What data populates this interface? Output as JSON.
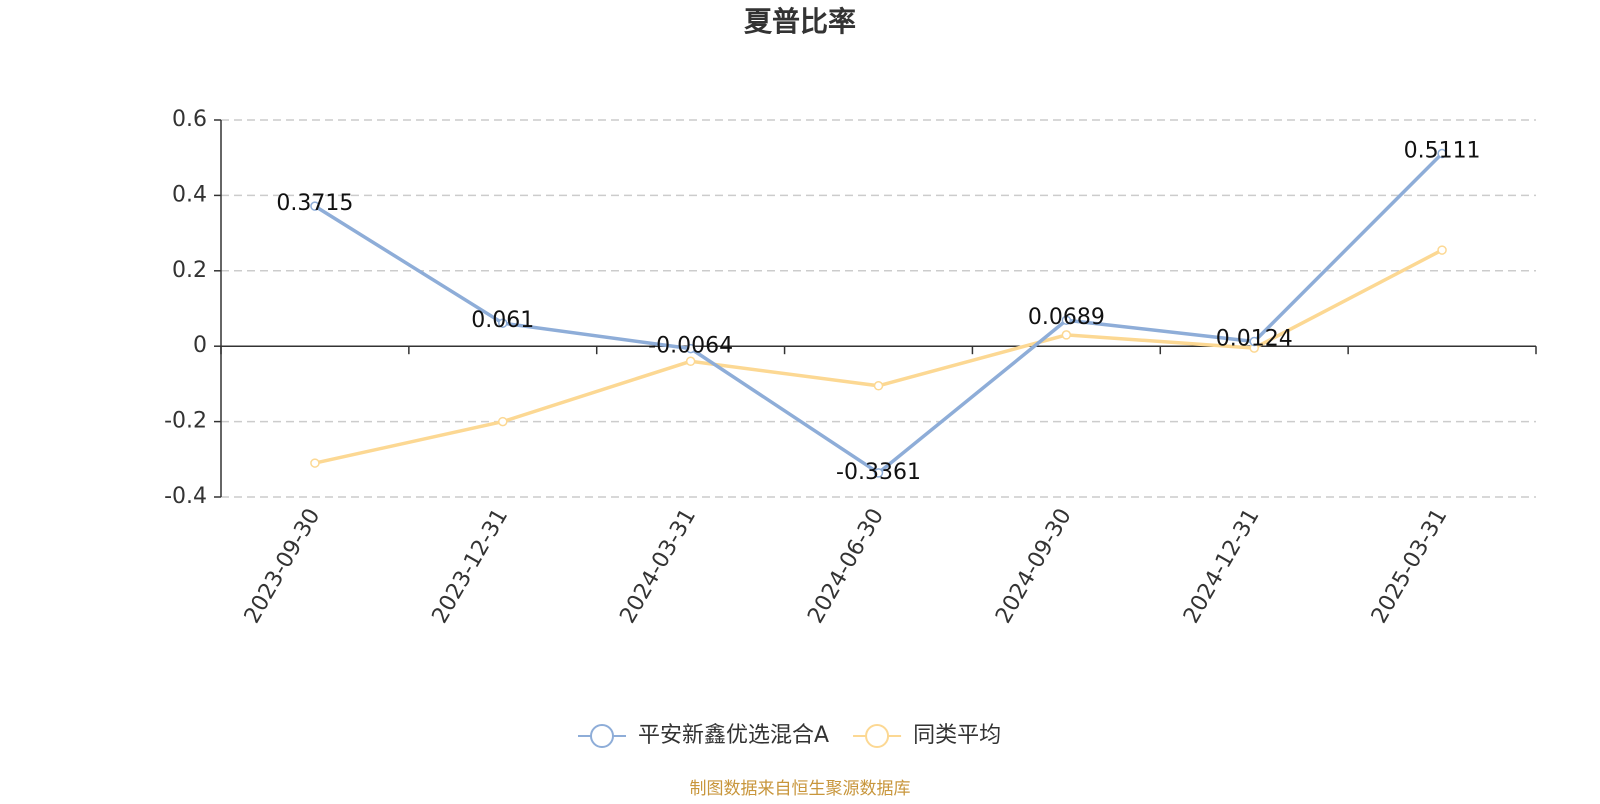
{
  "chart_data": {
    "type": "line",
    "title": "夏普比率",
    "categories": [
      "2023-09-30",
      "2023-12-31",
      "2024-03-31",
      "2024-06-30",
      "2024-09-30",
      "2024-12-31",
      "2025-03-31"
    ],
    "series": [
      {
        "name": "平安新鑫优选混合A",
        "color": "#8eadd8",
        "show_labels": true,
        "values": [
          0.3715,
          0.061,
          -0.0064,
          -0.3361,
          0.0689,
          0.0124,
          0.5111
        ]
      },
      {
        "name": "同类平均",
        "color": "#fcd893",
        "show_labels": false,
        "values": [
          -0.31,
          -0.2,
          -0.04,
          -0.105,
          0.03,
          -0.005,
          0.255
        ]
      }
    ],
    "ylim": [
      -0.4,
      0.6
    ],
    "yticks": [
      -0.4,
      -0.2,
      0,
      0.2,
      0.4,
      0.6
    ],
    "grid": true,
    "source": "制图数据来自恒生聚源数据库"
  }
}
